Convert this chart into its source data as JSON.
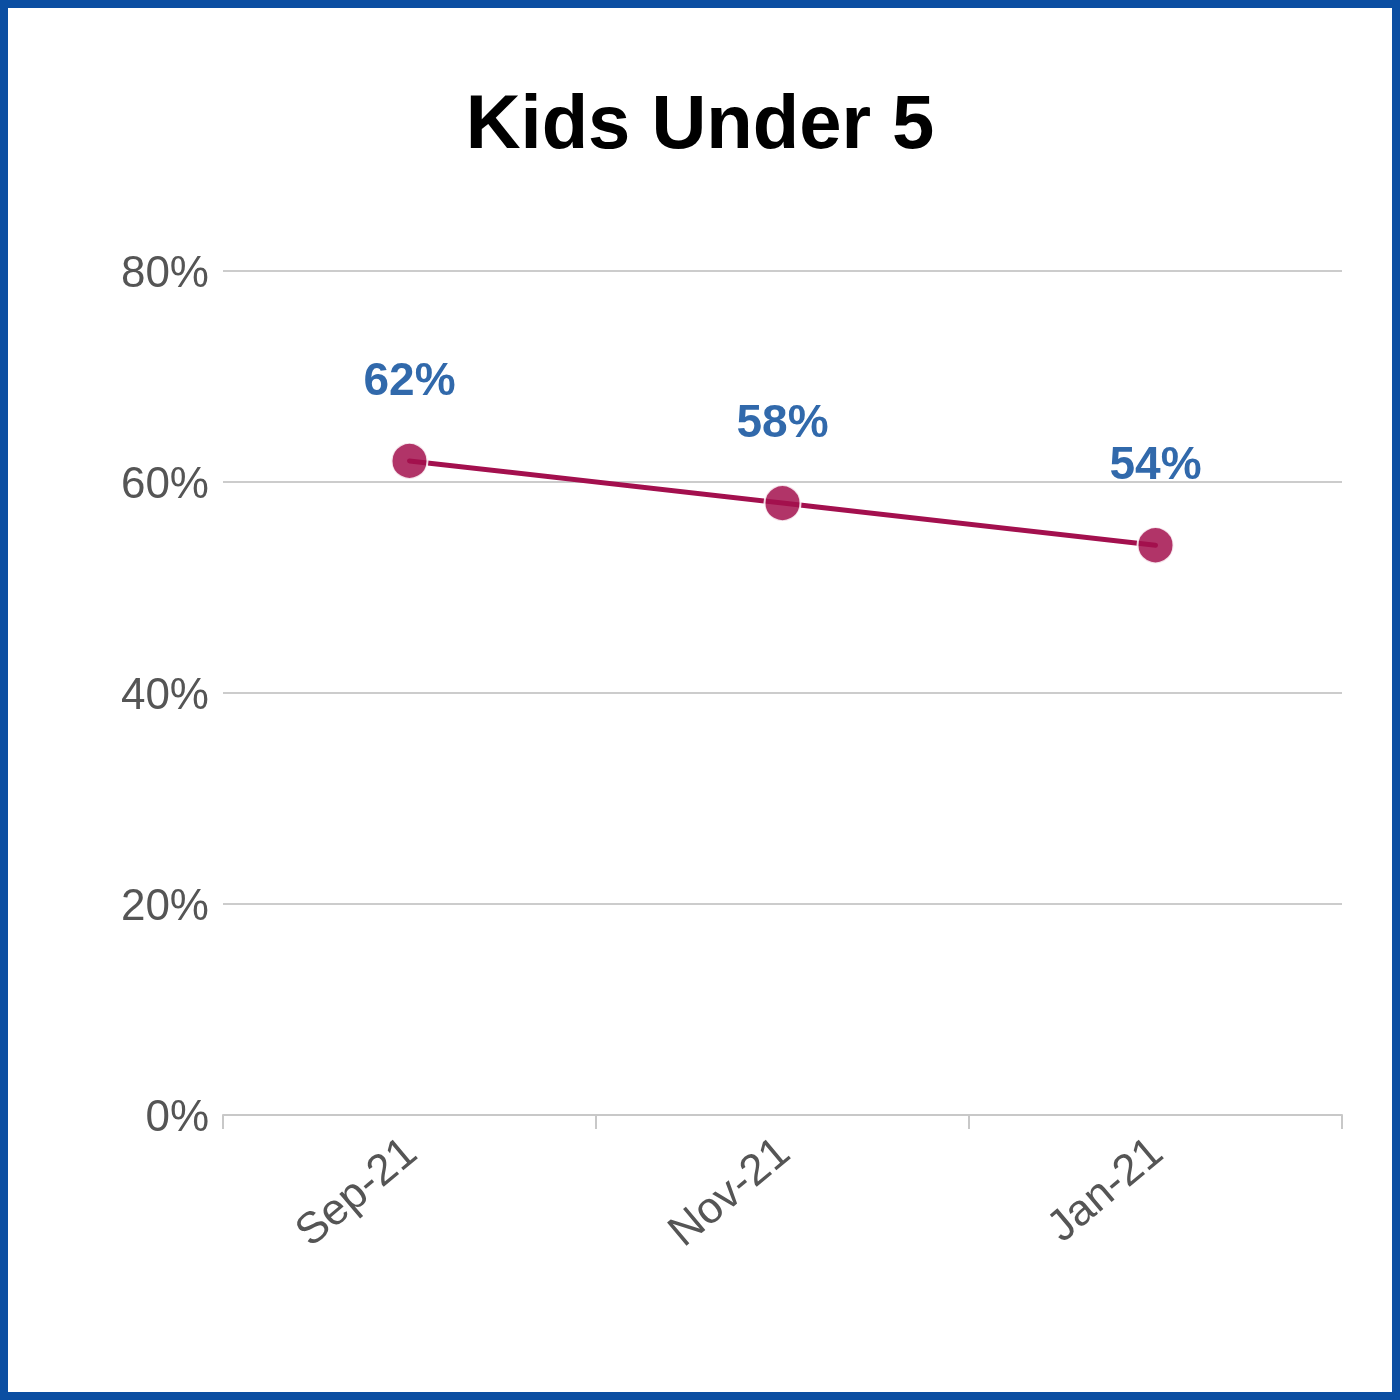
{
  "chart_data": {
    "type": "line",
    "title": "Kids Under 5",
    "categories": [
      "Sep-21",
      "Nov-21",
      "Jan-21"
    ],
    "series": [
      {
        "color": "#a3104e",
        "values": [
          62,
          58,
          54
        ],
        "value_labels": [
          "62%",
          "58%",
          "54%"
        ]
      }
    ],
    "ylim": [
      0,
      80
    ],
    "yticks": [
      {
        "value": 0,
        "label": "0%"
      },
      {
        "value": 20,
        "label": "20%"
      },
      {
        "value": 40,
        "label": "40%"
      },
      {
        "value": 60,
        "label": "60%"
      },
      {
        "value": 80,
        "label": "80%"
      }
    ],
    "grid": "y",
    "marker": "circle",
    "line_style": "solid"
  }
}
